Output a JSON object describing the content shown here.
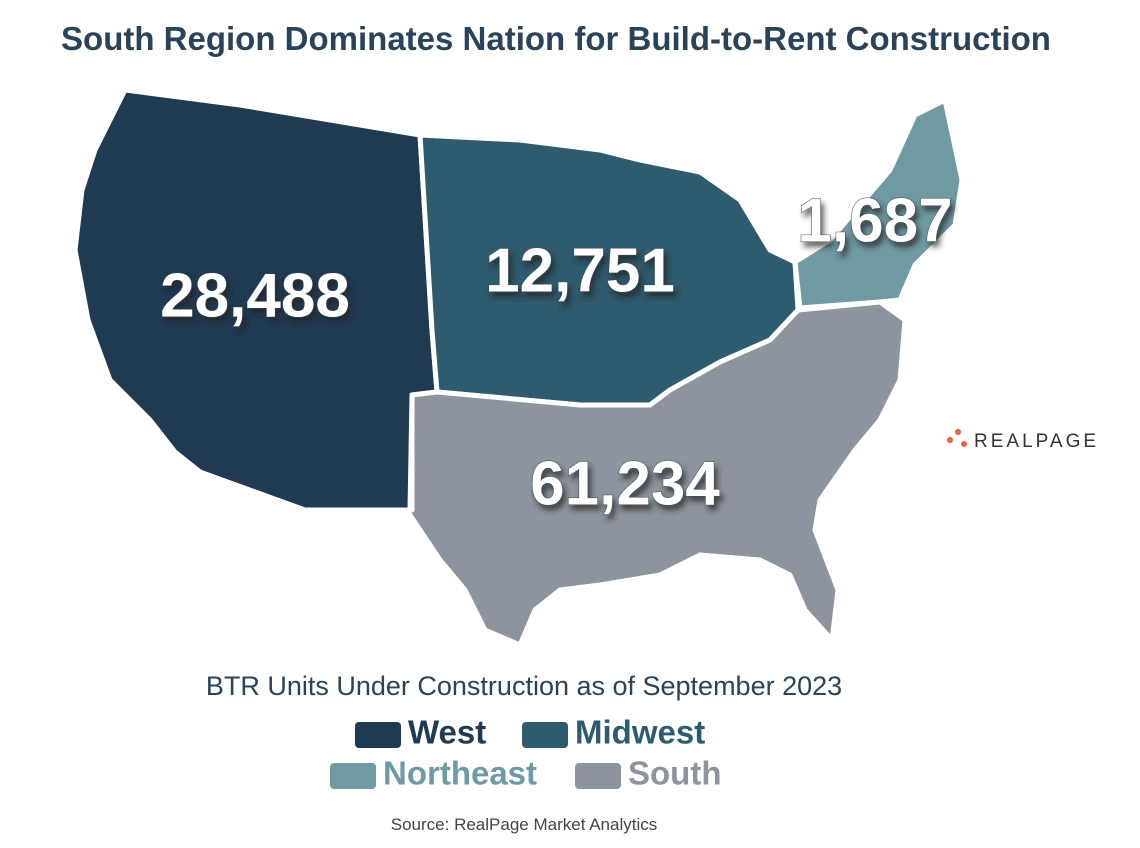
{
  "title": "South Region Dominates Nation for Build-to-Rent Construction",
  "subtitle": "BTR Units Under Construction as of September 2023",
  "source": "Source: RealPage Market Analytics",
  "logo": "REALPAGE",
  "regions": [
    {
      "name": "West",
      "color": "#203a52",
      "value": 28488,
      "value_label": "28,488"
    },
    {
      "name": "Midwest",
      "color": "#2e5b6d",
      "value": 12751,
      "value_label": "12,751"
    },
    {
      "name": "Northeast",
      "color": "#6f9aa3",
      "value": 1687,
      "value_label": "1,687"
    },
    {
      "name": "South",
      "color": "#8c959d",
      "value": 61234,
      "value_label": "61,234"
    }
  ]
}
